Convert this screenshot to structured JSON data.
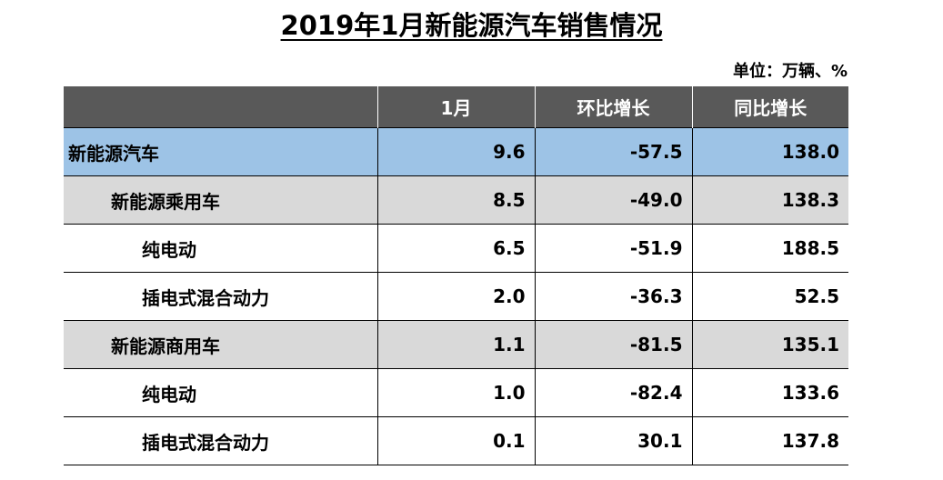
{
  "title": "2019年1月新能源汽车销售情况",
  "unit": "单位：万辆、%",
  "table": {
    "headers": [
      "",
      "1月",
      "环比增长",
      "同比增长"
    ],
    "rows": [
      {
        "level": 0,
        "name": "新能源汽车",
        "jan": "9.6",
        "mom": "-57.5",
        "yoy": "138.0"
      },
      {
        "level": 1,
        "name": "新能源乘用车",
        "jan": "8.5",
        "mom": "-49.0",
        "yoy": "138.3"
      },
      {
        "level": 2,
        "name": "纯电动",
        "jan": "6.5",
        "mom": "-51.9",
        "yoy": "188.5"
      },
      {
        "level": 2,
        "name": "插电式混合动力",
        "jan": "2.0",
        "mom": "-36.3",
        "yoy": "52.5"
      },
      {
        "level": 1,
        "name": "新能源商用车",
        "jan": "1.1",
        "mom": "-81.5",
        "yoy": "135.1"
      },
      {
        "level": 2,
        "name": "纯电动",
        "jan": "1.0",
        "mom": "-82.4",
        "yoy": "133.6"
      },
      {
        "level": 2,
        "name": "插电式混合动力",
        "jan": "0.1",
        "mom": "30.1",
        "yoy": "137.8"
      }
    ]
  }
}
